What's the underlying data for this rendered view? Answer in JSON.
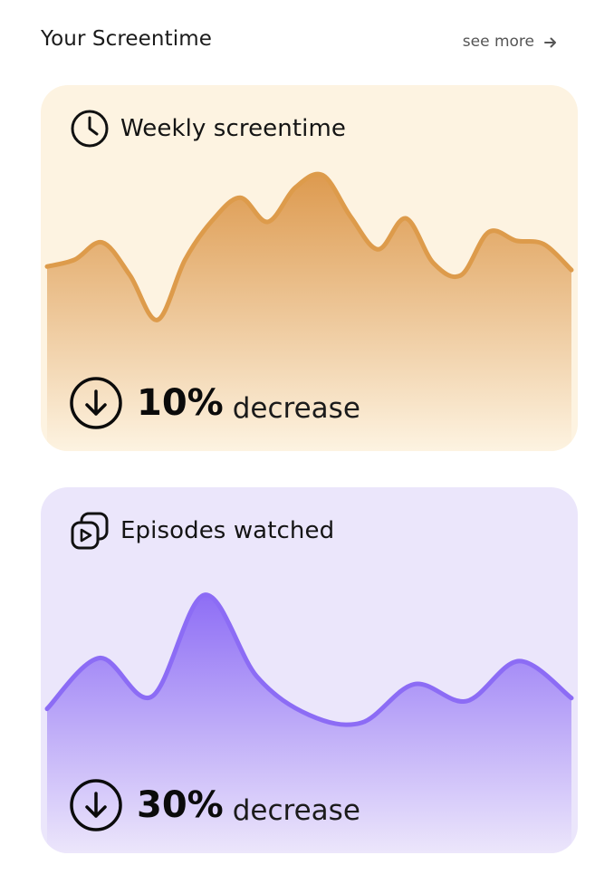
{
  "header": {
    "title": "Your Screentime",
    "see_more_label": "see more",
    "see_more_icon": "arrow-right-icon"
  },
  "cards": [
    {
      "id": "screentime",
      "title": "Weekly screentime",
      "icon": "clock-icon",
      "change_icon": "arrow-down-circle-icon",
      "change_value": "10%",
      "change_label": "decrease",
      "colors": {
        "background": "#fdf3e1",
        "line": "#dd9b4b",
        "fill_top": "#dd9a4f",
        "fill_bottom": "#fdf3e1"
      },
      "trend_values": [
        0.43,
        0.47,
        0.57,
        0.38,
        0.12,
        0.47,
        0.7,
        0.83,
        0.69,
        0.89,
        0.96,
        0.72,
        0.53,
        0.71,
        0.45,
        0.38,
        0.63,
        0.58,
        0.56,
        0.41
      ]
    },
    {
      "id": "episodes",
      "title": "Episodes watched",
      "icon": "play-stack-icon",
      "change_icon": "arrow-down-circle-icon",
      "change_value": "30%",
      "change_label": "decrease",
      "colors": {
        "background": "#ebe6fb",
        "line": "#8c6cf5",
        "fill_top": "#8e6ef5",
        "fill_bottom": "#ece6fb"
      },
      "trend_values": [
        0.22,
        0.55,
        0.3,
        0.96,
        0.43,
        0.18,
        0.13,
        0.38,
        0.27,
        0.53,
        0.29
      ]
    }
  ]
}
